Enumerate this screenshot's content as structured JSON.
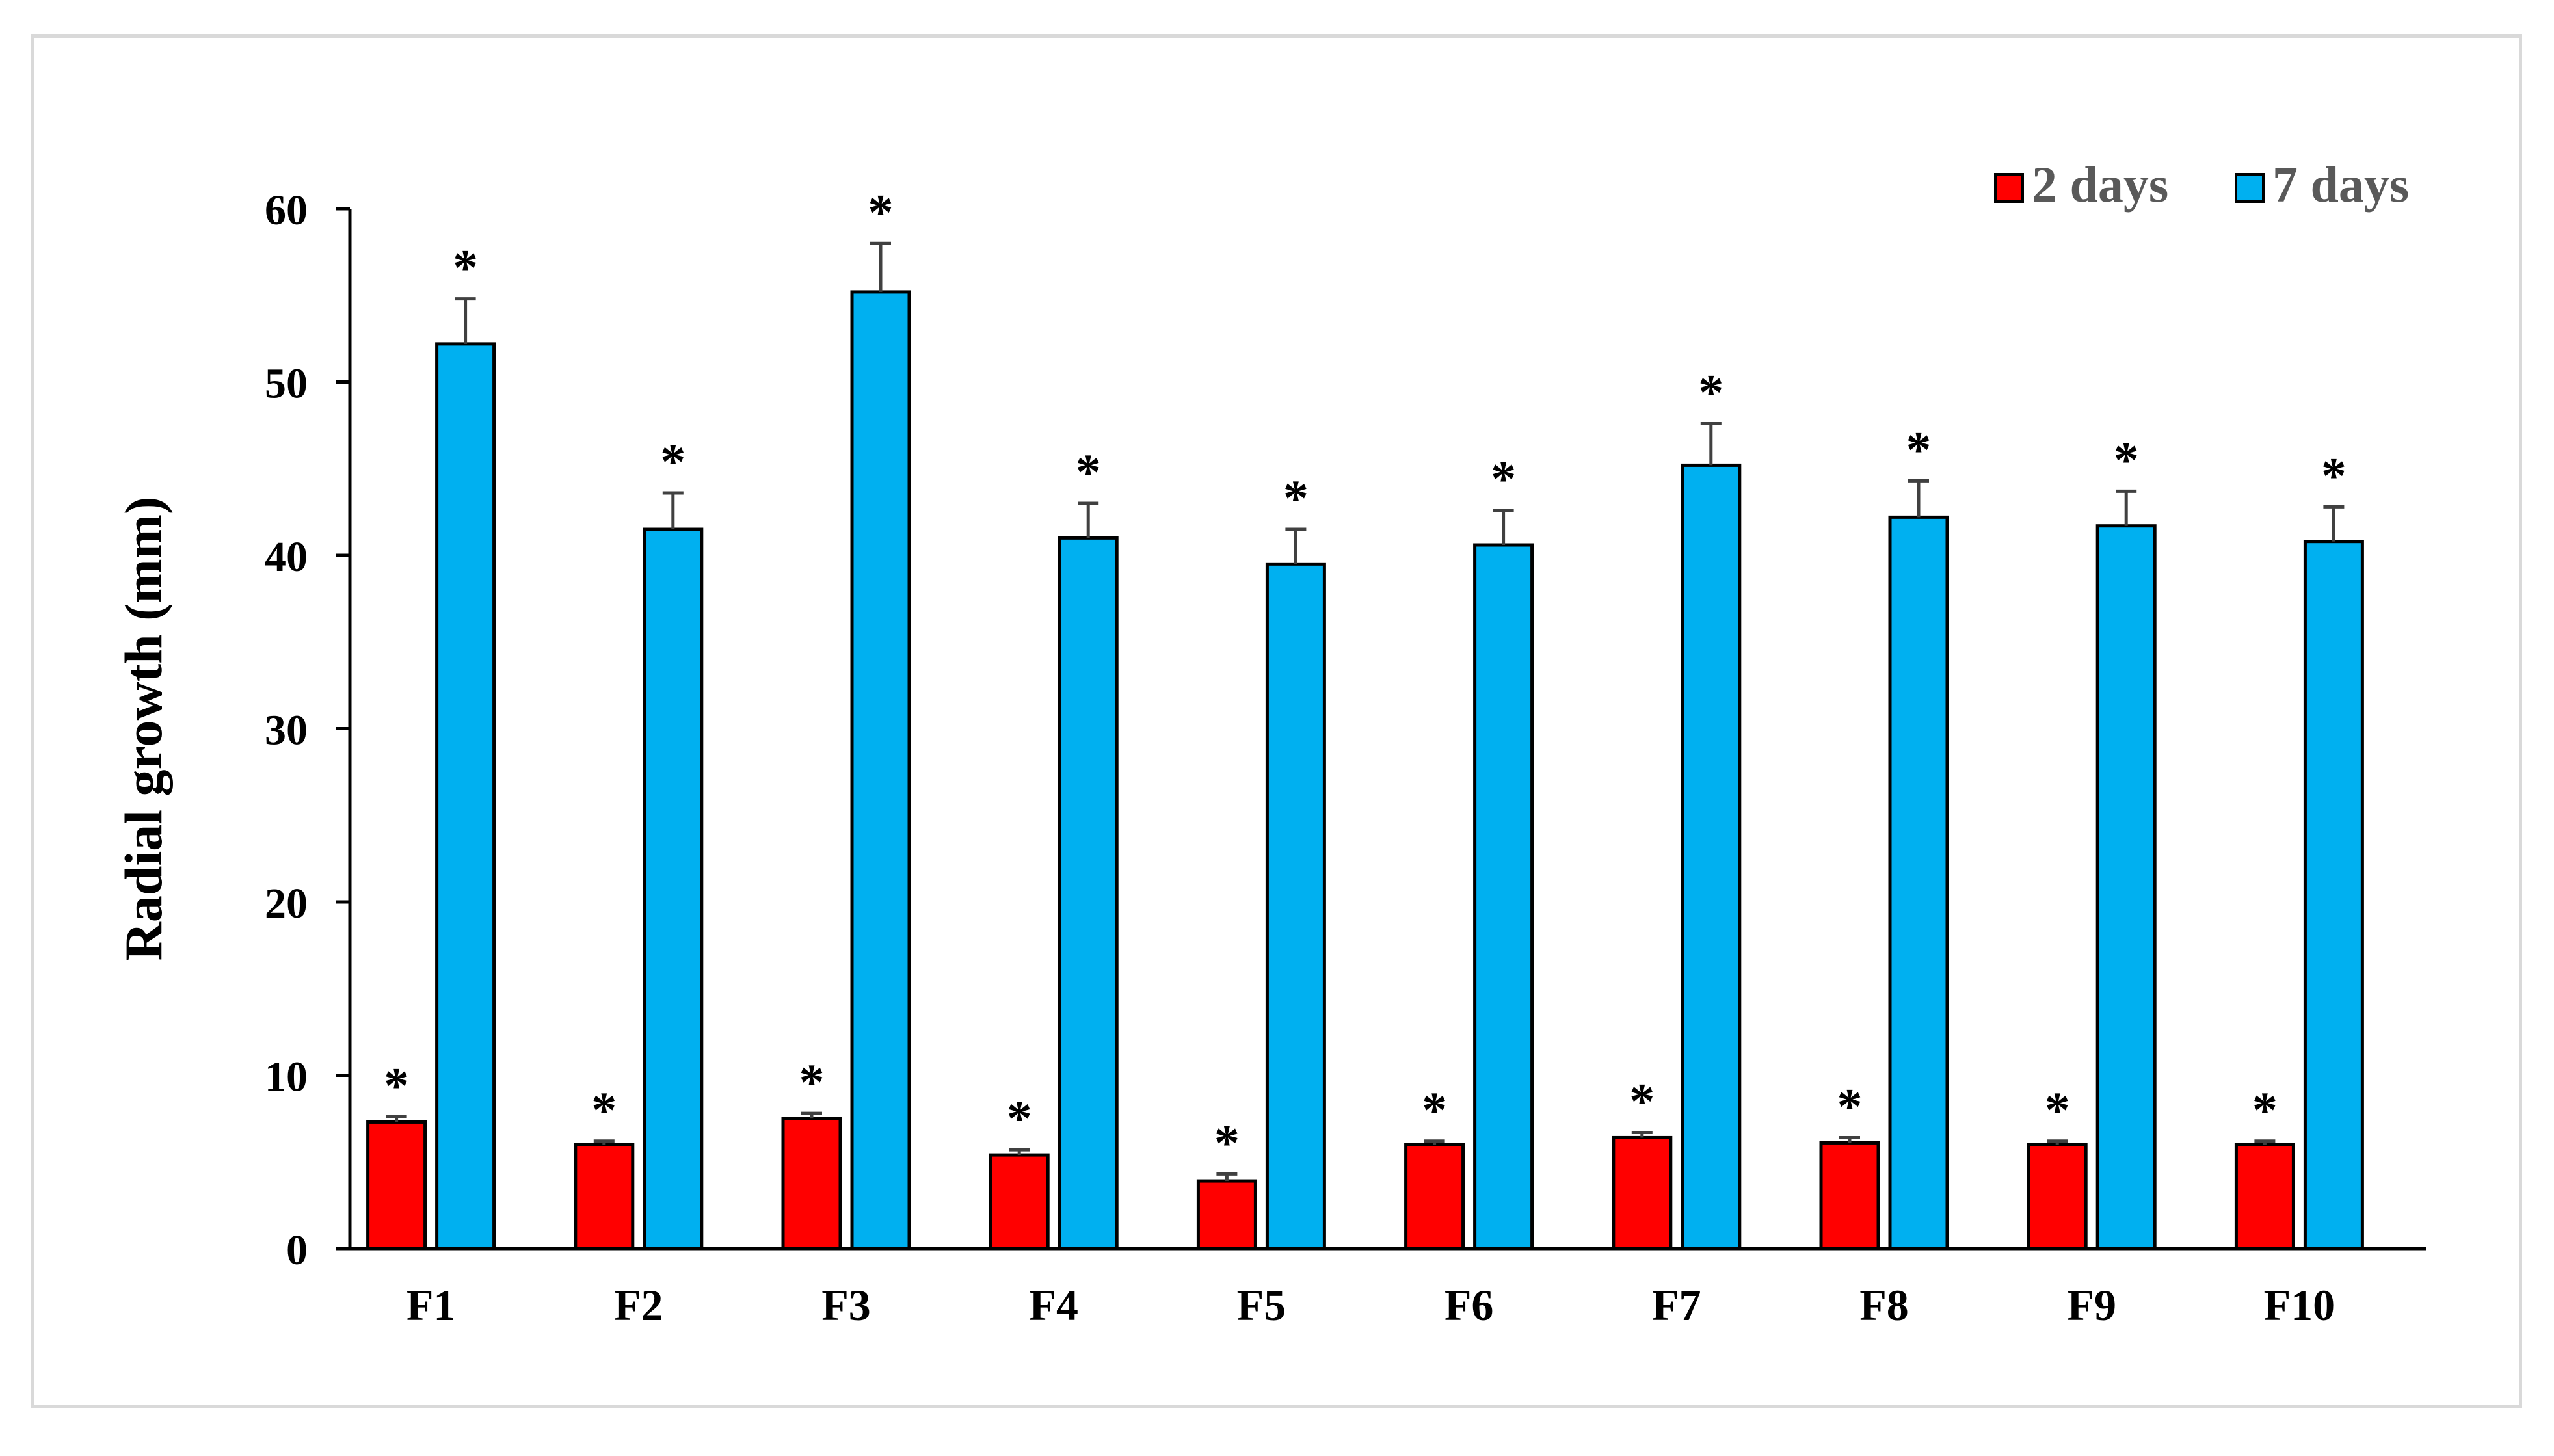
{
  "chart_data": {
    "type": "bar",
    "title": "",
    "xlabel": "",
    "ylabel": "Radial growth (mm)",
    "ylim": [
      0,
      60
    ],
    "yticks": [
      0,
      10,
      20,
      30,
      40,
      50,
      60
    ],
    "grid": false,
    "legend_position": "top-right",
    "significance_marker": "*",
    "categories": [
      "F1",
      "F2",
      "F3",
      "F4",
      "F5",
      "F6",
      "F7",
      "F8",
      "F9",
      "F10"
    ],
    "series": [
      {
        "name": "2 days",
        "color": "#ff0000",
        "values": [
          7.3,
          6.0,
          7.5,
          5.4,
          3.9,
          6.0,
          6.4,
          6.1,
          6.0,
          6.0
        ],
        "errors": [
          0.3,
          0.2,
          0.3,
          0.3,
          0.4,
          0.2,
          0.3,
          0.3,
          0.2,
          0.2
        ]
      },
      {
        "name": "7 days",
        "color": "#00b0f0",
        "values": [
          52.2,
          41.5,
          55.2,
          41.0,
          39.5,
          40.6,
          45.2,
          42.2,
          41.7,
          40.8
        ],
        "errors": [
          2.6,
          2.1,
          2.8,
          2.0,
          2.0,
          2.0,
          2.4,
          2.1,
          2.0,
          2.0
        ]
      }
    ]
  }
}
